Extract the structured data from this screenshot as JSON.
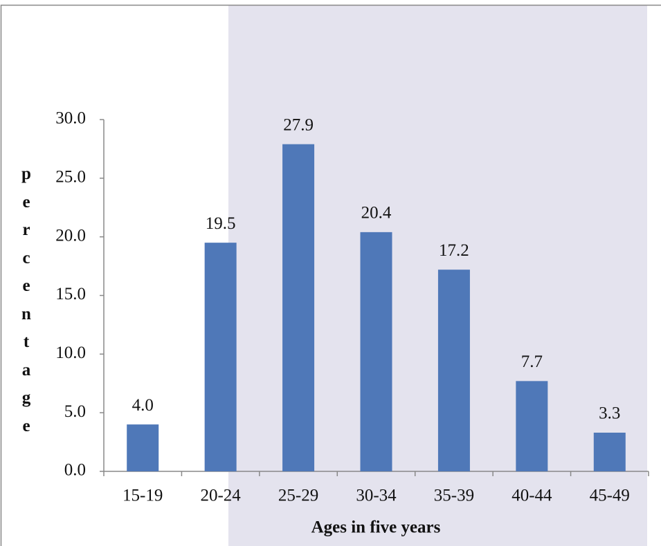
{
  "chart_data": {
    "type": "bar",
    "x_label": "Ages in five years",
    "y_label": "percentage",
    "categories": [
      "15-19",
      "20-24",
      "25-29",
      "30-34",
      "35-39",
      "40-44",
      "45-49"
    ],
    "values": [
      4.0,
      19.5,
      27.9,
      20.4,
      17.2,
      7.7,
      3.3
    ],
    "value_labels": [
      "4.0",
      "19.5",
      "27.9",
      "20.4",
      "17.2",
      "7.7",
      "3.3"
    ],
    "color": "#4f78b8",
    "ylim": [
      0,
      30
    ],
    "yticks": [
      {
        "value": 0,
        "label": "0.0"
      },
      {
        "value": 5,
        "label": "5.0"
      },
      {
        "value": 10,
        "label": "10.0"
      },
      {
        "value": 15,
        "label": "15.0"
      },
      {
        "value": 20,
        "label": "20.0"
      },
      {
        "value": 25,
        "label": "25.0"
      },
      {
        "value": 30,
        "label": "30.0"
      }
    ],
    "grid": false
  }
}
